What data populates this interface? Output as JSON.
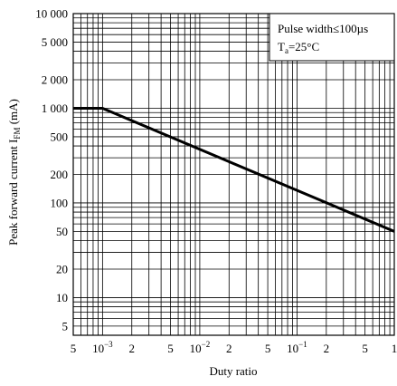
{
  "chart_data": {
    "type": "line",
    "title": "",
    "xlabel": "Duty ratio",
    "ylabel_main": "Peak forward current I",
    "ylabel_sub": "FM",
    "ylabel_unit": " (mA)",
    "x_scale": "log",
    "y_scale": "log",
    "xlim": [
      0.0005,
      1
    ],
    "ylim": [
      4,
      10000
    ],
    "grid": true,
    "legend_placement": "top-right",
    "legend": {
      "line1": "Pulse width≤100µs",
      "line2_main": "T",
      "line2_sub": "a",
      "line2_rest": "=25°C"
    },
    "x_ticks": [
      {
        "value": 0.0005,
        "label": "5"
      },
      {
        "value": 0.001,
        "base": "10",
        "exp": "−3"
      },
      {
        "value": 0.002,
        "label": "2"
      },
      {
        "value": 0.005,
        "label": "5"
      },
      {
        "value": 0.01,
        "base": "10",
        "exp": "−2"
      },
      {
        "value": 0.02,
        "label": "2"
      },
      {
        "value": 0.05,
        "label": "5"
      },
      {
        "value": 0.1,
        "base": "10",
        "exp": "−1"
      },
      {
        "value": 0.2,
        "label": "2"
      },
      {
        "value": 0.5,
        "label": "5"
      },
      {
        "value": 1,
        "label": "1"
      }
    ],
    "y_ticks": [
      {
        "value": 5,
        "label": "5"
      },
      {
        "value": 10,
        "label": "10"
      },
      {
        "value": 20,
        "label": "20"
      },
      {
        "value": 50,
        "label": "50"
      },
      {
        "value": 100,
        "label": "100"
      },
      {
        "value": 200,
        "label": "200"
      },
      {
        "value": 500,
        "label": "500"
      },
      {
        "value": 1000,
        "label": "1 000"
      },
      {
        "value": 2000,
        "label": "2 000"
      },
      {
        "value": 5000,
        "label": "5 000"
      },
      {
        "value": 10000,
        "label": "10 000"
      }
    ],
    "series": [
      {
        "x": [
          0.0005,
          0.001,
          1
        ],
        "y": [
          1000,
          1000,
          50
        ]
      }
    ]
  }
}
